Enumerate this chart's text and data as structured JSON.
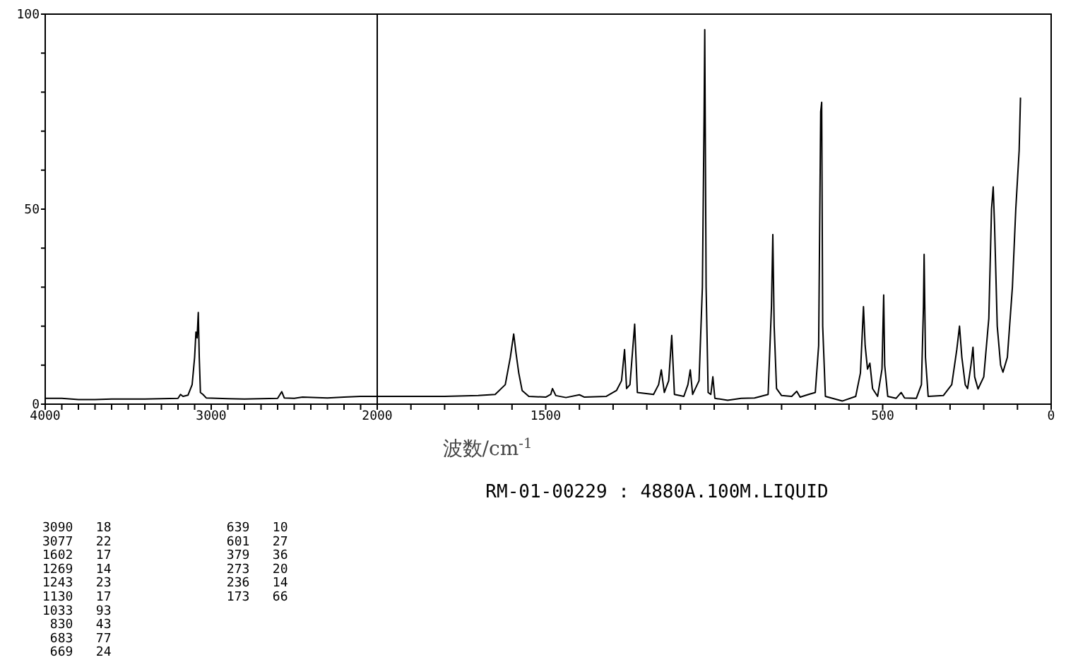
{
  "chart_data": [
    {
      "type": "line",
      "xlim": [
        4000,
        2000
      ],
      "ylim": [
        0,
        100
      ],
      "xticks": [
        4000,
        {
          "value": 3900,
          "label": null
        },
        {
          "value": 3800,
          "label": null
        },
        {
          "value": 3700,
          "label": null
        },
        {
          "value": 3600,
          "label": null
        },
        {
          "value": 3500,
          "label": null
        },
        {
          "value": 3400,
          "label": null
        },
        {
          "value": 3300,
          "label": null
        },
        {
          "value": 3200,
          "label": null
        },
        {
          "value": 3100,
          "label": null
        },
        3000,
        {
          "value": 2900,
          "label": null
        },
        {
          "value": 2800,
          "label": null
        },
        {
          "value": 2700,
          "label": null
        },
        {
          "value": 2600,
          "label": null
        },
        {
          "value": 2500,
          "label": null
        },
        {
          "value": 2400,
          "label": null
        },
        {
          "value": 2300,
          "label": null
        },
        {
          "value": 2200,
          "label": null
        },
        {
          "value": 2100,
          "label": null
        },
        2000
      ],
      "yticks": [
        0,
        {
          "value": 10,
          "label": null
        },
        {
          "value": 20,
          "label": null
        },
        {
          "value": 30,
          "label": null
        },
        {
          "value": 40,
          "label": null
        },
        50,
        {
          "value": 60,
          "label": null
        },
        {
          "value": 70,
          "label": null
        },
        {
          "value": 80,
          "label": null
        },
        {
          "value": 90,
          "label": null
        },
        100
      ],
      "series": [
        {
          "color": "#000000",
          "x": [
            4000,
            3900,
            3800,
            3700,
            3600,
            3500,
            3400,
            3300,
            3200,
            3185,
            3170,
            3140,
            3115,
            3100,
            3092,
            3085,
            3078,
            3072,
            3065,
            3050,
            3030,
            2900,
            2800,
            2700,
            2600,
            2575,
            2560,
            2500,
            2450,
            2300,
            2200,
            2100,
            2000
          ],
          "values": [
            1.5,
            1.5,
            1.2,
            1.2,
            1.3,
            1.3,
            1.3,
            1.4,
            1.5,
            2.5,
            2.0,
            2.3,
            5,
            12,
            18.5,
            17,
            23.5,
            12,
            3,
            2.5,
            1.6,
            1.4,
            1.3,
            1.4,
            1.5,
            3.2,
            1.6,
            1.5,
            1.8,
            1.6,
            1.8,
            2.0,
            2.0
          ]
        }
      ]
    },
    {
      "type": "line",
      "xlim": [
        2000,
        0
      ],
      "ylim": [
        0,
        100
      ],
      "tick_labels": "x",
      "xlabel": "波数/cm$^{-1}$",
      "xticks": [
        {
          "value": 2000,
          "label": null
        },
        {
          "value": 1900,
          "label": null
        },
        {
          "value": 1800,
          "label": null
        },
        {
          "value": 1700,
          "label": null
        },
        {
          "value": 1600,
          "label": null
        },
        1500,
        {
          "value": 1400,
          "label": null
        },
        {
          "value": 1300,
          "label": null
        },
        {
          "value": 1200,
          "label": null
        },
        {
          "value": 1100,
          "label": null
        },
        {
          "value": 1000,
          "label": null
        },
        {
          "value": 900,
          "label": null
        },
        {
          "value": 800,
          "label": null
        },
        {
          "value": 700,
          "label": null
        },
        {
          "value": 600,
          "label": null
        },
        500,
        {
          "value": 400,
          "label": null
        },
        {
          "value": 300,
          "label": null
        },
        {
          "value": 200,
          "label": null
        },
        {
          "value": 100,
          "label": null
        },
        0
      ],
      "series": [
        {
          "color": "#000000",
          "x": [
            2000,
            1800,
            1700,
            1650,
            1620,
            1605,
            1595,
            1588,
            1580,
            1570,
            1550,
            1500,
            1485,
            1480,
            1470,
            1440,
            1400,
            1385,
            1320,
            1290,
            1275,
            1266,
            1260,
            1250,
            1236,
            1228,
            1180,
            1165,
            1157,
            1148,
            1135,
            1126,
            1118,
            1090,
            1078,
            1071,
            1064,
            1045,
            1035,
            1030,
            1028,
            1024,
            1018,
            1010,
            1004,
            998,
            960,
            920,
            880,
            840,
            830,
            826,
            822,
            815,
            800,
            770,
            755,
            745,
            720,
            700,
            690,
            684,
            681,
            678,
            670,
            620,
            580,
            566,
            557,
            552,
            545,
            538,
            530,
            515,
            502,
            497,
            494,
            485,
            460,
            445,
            435,
            400,
            385,
            379,
            377,
            373,
            365,
            320,
            295,
            280,
            272,
            265,
            255,
            248,
            238,
            232,
            227,
            217,
            200,
            185,
            177,
            172,
            168,
            160,
            150,
            143,
            130,
            115,
            105,
            95,
            91
          ],
          "values": [
            2.0,
            2.0,
            2.2,
            2.5,
            5,
            12,
            18,
            13,
            8,
            3.5,
            2.0,
            1.8,
            2.5,
            4,
            2.2,
            1.7,
            2.4,
            1.8,
            2,
            3.5,
            6,
            14,
            4,
            5,
            20.5,
            3,
            2.5,
            5,
            8.8,
            3,
            6,
            17.6,
            2.5,
            2,
            5,
            8.8,
            2.5,
            6,
            30,
            74,
            96,
            30,
            3,
            2.5,
            7,
            1.5,
            1.0,
            1.5,
            1.6,
            2.5,
            25,
            43.5,
            20,
            4,
            2.2,
            2.0,
            3.3,
            1.8,
            2.5,
            3,
            15,
            75,
            77.4,
            20,
            2,
            0.8,
            2,
            8,
            25,
            15,
            9,
            10.5,
            4,
            2.0,
            9,
            28,
            10,
            2.0,
            1.5,
            3.0,
            1.6,
            1.5,
            5,
            25,
            38.4,
            12,
            2,
            2.2,
            5,
            14,
            20,
            12,
            5,
            4,
            10,
            14.6,
            7,
            3.9,
            7,
            22,
            50,
            55.7,
            46,
            20,
            10,
            8.2,
            12,
            30,
            50,
            65,
            78.6
          ]
        }
      ],
      "annotations": [
        "RM-01-00229 : 4880A.100M.LIQUID",
        "3090   18",
        "3077   22",
        "1602   17",
        "1269   14",
        "1243   23",
        "1130   17",
        "1033   93",
        " 830   43",
        " 683   77",
        " 669   24",
        " 639   10",
        " 601   27",
        " 379   36",
        " 273   20",
        " 236   14",
        " 173   66"
      ]
    }
  ]
}
